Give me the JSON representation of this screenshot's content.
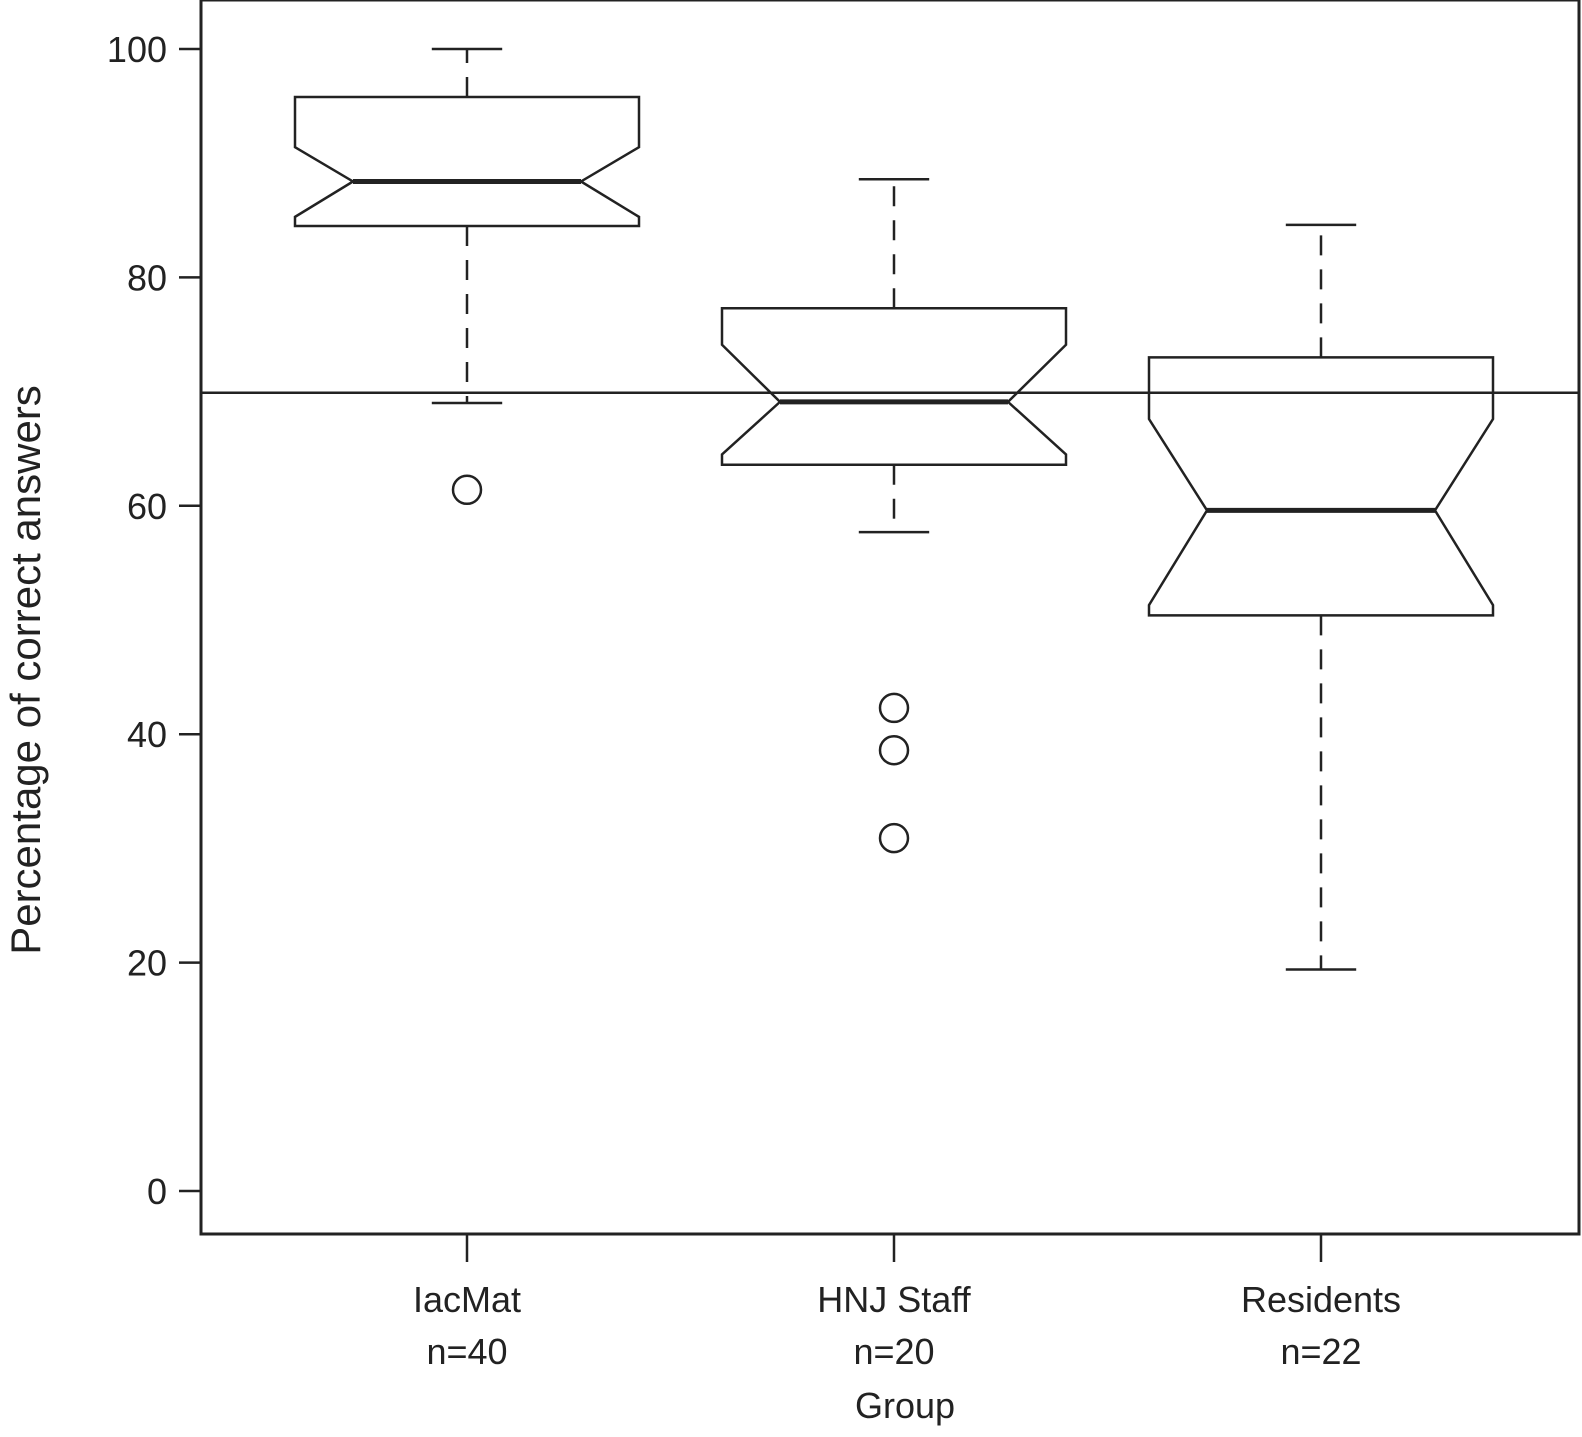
{
  "chart_data": {
    "type": "box",
    "title": "",
    "xlabel": "Group",
    "ylabel": "Percentage of correct answers",
    "ylim": [
      -3.6,
      104
    ],
    "yticks": [
      0,
      20,
      40,
      60,
      80,
      100
    ],
    "grid": false,
    "notched": true,
    "reference_line": 69.9,
    "groups": [
      {
        "label": "IacMat",
        "n_label": "n=40",
        "whisker_low": 69,
        "q1": 84.5,
        "notch_low": 85.3,
        "median": 88.4,
        "notch_high": 91.4,
        "q3": 95.8,
        "whisker_high": 100,
        "outliers": [
          61.4
        ]
      },
      {
        "label": "HNJ Staff",
        "n_label": "n=20",
        "whisker_low": 57.7,
        "q1": 63.6,
        "notch_low": 64.5,
        "median": 69.1,
        "notch_high": 74.1,
        "q3": 77.3,
        "whisker_high": 88.6,
        "outliers": [
          42.3,
          38.6,
          30.9
        ]
      },
      {
        "label": "Residents",
        "n_label": "n=22",
        "whisker_low": 19.4,
        "q1": 50.4,
        "notch_low": 51.3,
        "median": 59.6,
        "notch_high": 67.6,
        "q3": 73.0,
        "whisker_high": 84.6,
        "outliers": []
      }
    ]
  },
  "colors": {
    "stroke": "#222222",
    "background": "#ffffff"
  }
}
